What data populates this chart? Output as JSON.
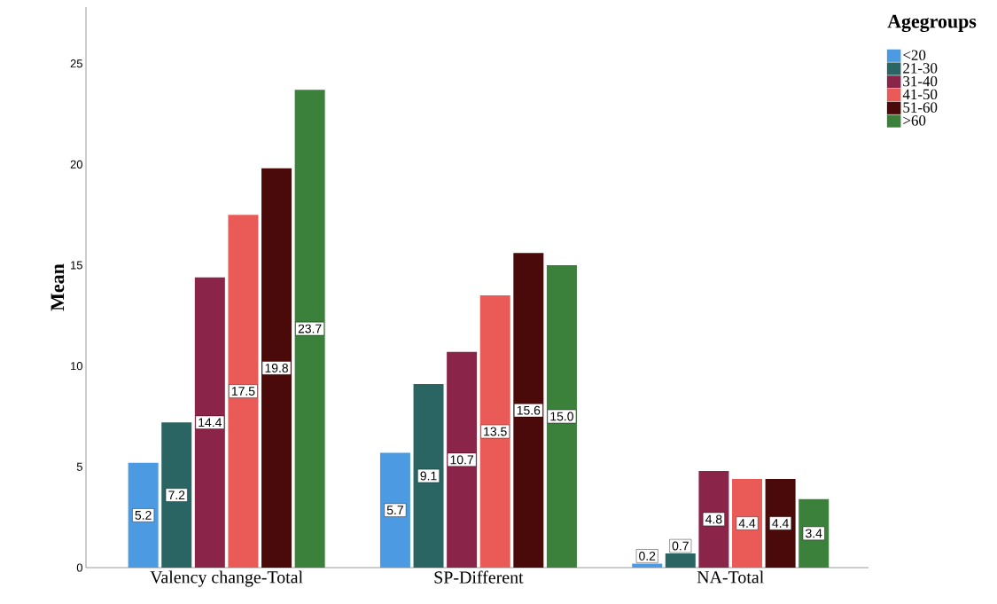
{
  "chart_data": {
    "type": "bar",
    "ylabel": "Mean",
    "legend_title": "Agegroups",
    "legend": "top right",
    "grid": false,
    "categories": [
      "Valency change-Total",
      "SP-Different",
      "NA-Total"
    ],
    "ylim": [
      0,
      27.8
    ],
    "yticks": [
      0,
      5,
      10,
      15,
      20,
      25
    ],
    "series": [
      {
        "name": "<20",
        "color": "#4c9be2",
        "values": [
          5.2,
          5.7,
          0.2
        ],
        "value_labels": [
          "5.2",
          "5.7",
          "0.2"
        ]
      },
      {
        "name": "21-30",
        "color": "#2a6563",
        "values": [
          7.2,
          9.1,
          0.7
        ],
        "value_labels": [
          "7.2",
          "9.1",
          "0.7"
        ]
      },
      {
        "name": "31-40",
        "color": "#8a2449",
        "values": [
          14.4,
          10.7,
          4.8
        ],
        "value_labels": [
          "14.4",
          "10.7",
          "4.8"
        ]
      },
      {
        "name": "41-50",
        "color": "#ea5a56",
        "values": [
          17.5,
          13.5,
          4.4
        ],
        "value_labels": [
          "17.5",
          "13.5",
          "4.4"
        ]
      },
      {
        "name": "51-60",
        "color": "#4a0a0a",
        "values": [
          19.8,
          15.6,
          4.4
        ],
        "value_labels": [
          "19.8",
          "15.6",
          "4.4"
        ]
      },
      {
        "name": ">60",
        "color": "#3b803b",
        "values": [
          23.7,
          15.0,
          3.4
        ],
        "value_labels": [
          "23.7",
          "15.0",
          "3.4"
        ]
      }
    ]
  }
}
